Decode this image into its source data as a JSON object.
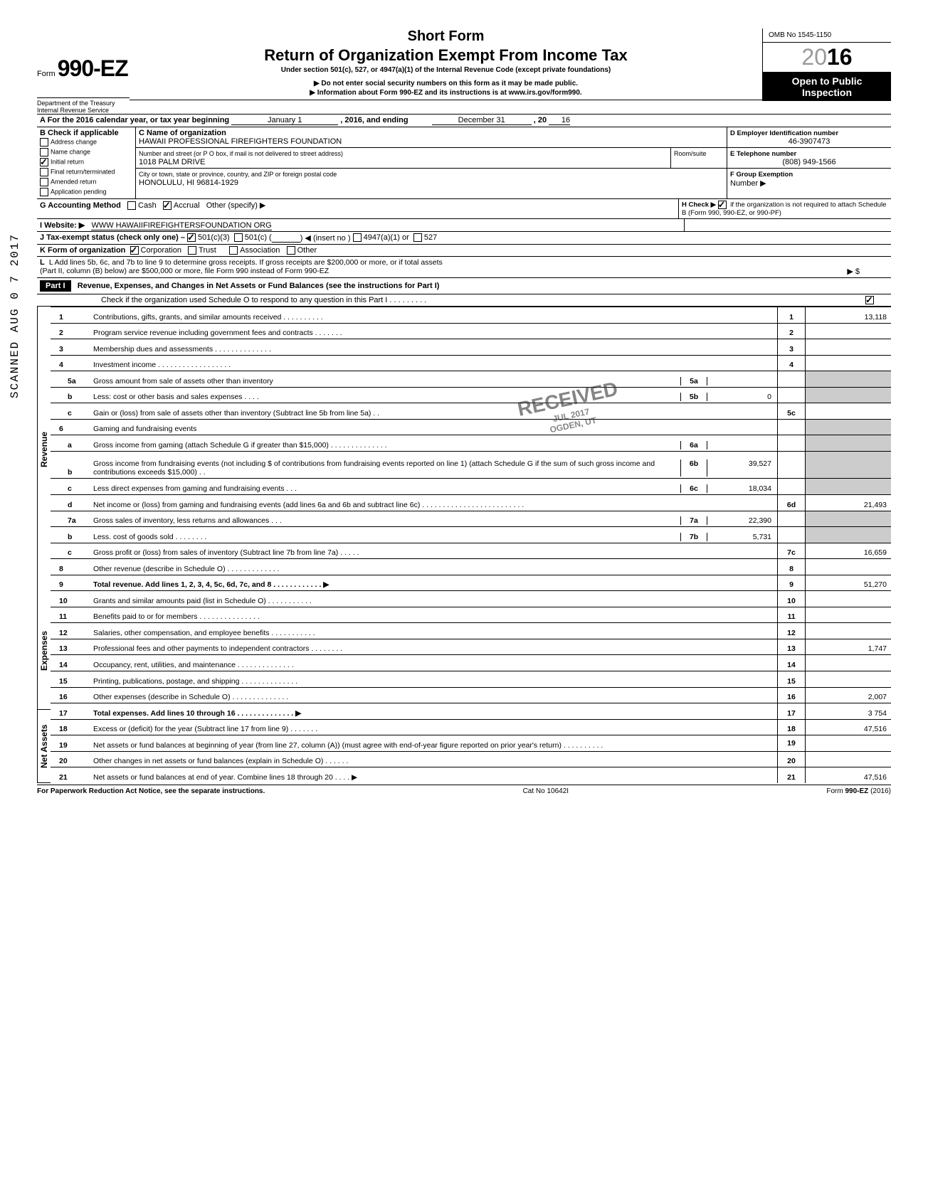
{
  "form": {
    "prefix": "Form",
    "number": "990-EZ",
    "short_title": "Short Form",
    "title": "Return of Organization Exempt From Income Tax",
    "under": "Under section 501(c), 527, or 4947(a)(1) of the Internal Revenue Code (except private foundations)",
    "donot": "▶ Do not enter social security numbers on this form as it may be made public.",
    "info": "▶ Information about Form 990-EZ and its instructions is at www.irs.gov/form990.",
    "omb": "OMB No 1545-1150",
    "year_light": "20",
    "year_bold": "16",
    "open1": "Open to Public",
    "open2": "Inspection",
    "dept1": "Department of the Treasury",
    "dept2": "Internal Revenue Service"
  },
  "A": {
    "label": "A  For the 2016 calendar year, or tax year beginning",
    "begin_label": "January 1",
    "mid": ", 2016, and ending",
    "end_label": "December 31",
    "end_year_prefix": ", 20",
    "end_year": "16"
  },
  "B": {
    "header": "B  Check if applicable",
    "items": [
      {
        "label": "Address change",
        "checked": false
      },
      {
        "label": "Name change",
        "checked": false
      },
      {
        "label": "Initial return",
        "checked": true
      },
      {
        "label": "Final return/terminated",
        "checked": false
      },
      {
        "label": "Amended return",
        "checked": false
      },
      {
        "label": "Application pending",
        "checked": false
      }
    ]
  },
  "C": {
    "label": "C  Name of organization",
    "name": "HAWAII PROFESSIONAL FIREFIGHTERS FOUNDATION",
    "addr_label": "Number and street (or P O  box, if mail is not delivered to street address)",
    "room_label": "Room/suite",
    "street": "1018 PALM DRIVE",
    "city_label": "City or town, state or province, country, and ZIP or foreign postal code",
    "city": "HONOLULU, HI 96814-1929"
  },
  "D": {
    "label": "D Employer Identification number",
    "value": "46-3907473"
  },
  "E": {
    "label": "E  Telephone number",
    "value": "(808) 949-1566"
  },
  "F": {
    "label": "F  Group Exemption",
    "sub": "Number ▶"
  },
  "G": {
    "label": "G  Accounting Method",
    "cash": "Cash",
    "cash_checked": false,
    "accrual": "Accrual",
    "accrual_checked": true,
    "other": "Other (specify) ▶"
  },
  "H": {
    "label": "H  Check ▶",
    "note": "if the organization is not required to attach Schedule B (Form 990, 990-EZ, or 990-PF)",
    "checked": true
  },
  "I": {
    "label": "I   Website: ▶",
    "value": "WWW HAWAIIFIREFIGHTERSFOUNDATION ORG"
  },
  "J": {
    "label": "J  Tax-exempt status (check only one) –",
    "c3": "501(c)(3)",
    "c3_checked": true,
    "c": "501(c) (",
    "c_checked": false,
    "insert": ") ◀ (insert no )",
    "a1": "4947(a)(1) or",
    "a1_checked": false,
    "s527": "527",
    "s527_checked": false
  },
  "K": {
    "label": "K  Form of organization",
    "corp": "Corporation",
    "corp_checked": true,
    "trust": "Trust",
    "trust_checked": false,
    "assoc": "Association",
    "assoc_checked": false,
    "other": "Other",
    "other_checked": false
  },
  "L": {
    "line1": "L  Add lines 5b, 6c, and 7b to line 9 to determine gross receipts. If gross receipts are $200,000 or more, or if total assets",
    "line2": "(Part II, column (B) below) are $500,000 or more, file Form 990 instead of Form 990-EZ",
    "arrow": "▶   $"
  },
  "partI": {
    "header": "Part I",
    "title": "Revenue, Expenses, and Changes in Net Assets or Fund Balances (see the instructions for Part I)",
    "check_line": "Check if the organization used Schedule O to respond to any question in this Part I  .   .   .   .   .   .   .   .   .",
    "check_checked": true
  },
  "sections": {
    "revenue": "Revenue",
    "expenses": "Expenses",
    "netassets": "Net Assets"
  },
  "lines": {
    "1": {
      "text": "Contributions, gifts, grants, and similar amounts received .     .     .     .     .     .     .     .     .     .",
      "box": "1",
      "amt": "13,118"
    },
    "2": {
      "text": "Program service revenue including government fees and contracts     .     .     .     .     .     .     .",
      "box": "2",
      "amt": ""
    },
    "3": {
      "text": "Membership dues and assessments        .     .     .     .     .     .     .     .     .     .     .     .     .     .",
      "box": "3",
      "amt": ""
    },
    "4": {
      "text": "Investment income     .     .     .     .     .     .     .     .     .     .     .     .     .     .     .     .     .     .",
      "box": "4",
      "amt": ""
    },
    "5a": {
      "text": "Gross amount from sale of assets other than inventory",
      "inner": "5a",
      "iamt": ""
    },
    "5b": {
      "text": "Less: cost or other basis and sales expenses  .     .     .     .",
      "inner": "5b",
      "iamt": "0"
    },
    "5c": {
      "text": "Gain or (loss) from sale of assets other than inventory (Subtract line 5b from line 5a)   .     .",
      "box": "5c",
      "amt": ""
    },
    "6": {
      "text": "Gaming and fundraising events"
    },
    "6a": {
      "text": "Gross income from gaming (attach Schedule G if greater than $15,000)    .     .     .     .     .     .     .     .     .     .     .     .     .     .",
      "inner": "6a",
      "iamt": ""
    },
    "6b": {
      "text": "Gross income from fundraising events (not including   $                             of contributions from fundraising events reported on line 1) (attach Schedule G if the sum of such gross income and contributions exceeds $15,000)  .   .",
      "inner": "6b",
      "iamt": "39,527"
    },
    "6c": {
      "text": "Less  direct expenses from gaming and fundraising events     .     .     .",
      "inner": "6c",
      "iamt": "18,034"
    },
    "6d": {
      "text": "Net income or (loss) from gaming and fundraising events (add lines 6a and 6b and subtract line 6c)     .   .   .   .   .   .   .   .   .   .   .   .   .   .   .   .   .   .   .   .   .   .   .   .   .",
      "box": "6d",
      "amt": "21,493"
    },
    "7a": {
      "text": "Gross sales of inventory, less returns and allowances  .    .    .",
      "inner": "7a",
      "iamt": "22,390"
    },
    "7b": {
      "text": "Less. cost of goods sold          .     .     .     .     .     .     .     .",
      "inner": "7b",
      "iamt": "5,731"
    },
    "7c": {
      "text": "Gross profit or (loss) from sales of inventory (Subtract line 7b from line 7a)   .    .     .     .     .",
      "box": "7c",
      "amt": "16,659"
    },
    "8": {
      "text": "Other revenue (describe in Schedule O)      .     .     .     .     .     .     .     .     .     .     .     .     .",
      "box": "8",
      "amt": ""
    },
    "9": {
      "text": "Total revenue. Add lines 1, 2, 3, 4, 5c, 6d, 7c, and 8    .    .    .    .    .    .    .    .    .    .    .    .   ▶",
      "box": "9",
      "amt": "51,270",
      "bold": true
    },
    "10": {
      "text": "Grants and similar amounts paid (list in Schedule O)    .    .     .     .     .     .     .     .     .     .     .",
      "box": "10",
      "amt": ""
    },
    "11": {
      "text": "Benefits paid to or for members    .     .     .     .     .     .     .     .     .     .     .     .     .     .     .",
      "box": "11",
      "amt": ""
    },
    "12": {
      "text": "Salaries, other compensation, and employee benefits  .   .   .        .    .    .    .    .    .    .    .",
      "box": "12",
      "amt": ""
    },
    "13": {
      "text": "Professional fees and other payments to independent contractors  .    .    .    .    .    .    .    .",
      "box": "13",
      "amt": "1,747"
    },
    "14": {
      "text": "Occupancy, rent, utilities, and maintenance     .    .    .    .    .    .    .    .    .    .    .    .    .    .",
      "box": "14",
      "amt": ""
    },
    "15": {
      "text": "Printing, publications, postage, and shipping  .    .    .    .    .    .    .    .    .    .    .    .    .    .",
      "box": "15",
      "amt": ""
    },
    "16": {
      "text": "Other expenses (describe in Schedule O)   .    .    .    .    .    .     .    .    .    .    .    .    .    .",
      "box": "16",
      "amt": "2,007"
    },
    "17": {
      "text": "Total expenses. Add lines 10 through 16   .    .    .    .    .    .    .    .    .    .    .    .    .    .   ▶",
      "box": "17",
      "amt": "3 754",
      "bold": true
    },
    "18": {
      "text": "Excess or (deficit) for the year (Subtract line 17 from line 9)         .     .     .     .     .     .     .",
      "box": "18",
      "amt": "47,516"
    },
    "19": {
      "text": "Net assets or fund balances at beginning of year (from line 27, column (A)) (must agree with end-of-year figure reported on prior year's return)    .     .     .     .     .     .     .     .     .     .",
      "box": "19",
      "amt": ""
    },
    "20": {
      "text": "Other changes in net assets or fund balances (explain in Schedule O) .      .     .     .     .     .",
      "box": "20",
      "amt": ""
    },
    "21": {
      "text": "Net assets or fund balances at end of year. Combine lines 18 through 20       .    .    .    .   ▶",
      "box": "21",
      "amt": "47,516"
    }
  },
  "footer": {
    "left": "For Paperwork Reduction Act Notice, see the separate instructions.",
    "mid": "Cat  No  10642I",
    "right": "Form 990-EZ (2016)"
  },
  "scanned": "SCANNED AUG 0 7 2017",
  "stamp": {
    "main": "RECEIVED",
    "sub1": "JUL    2017",
    "sub2": "OGDEN, UT"
  }
}
